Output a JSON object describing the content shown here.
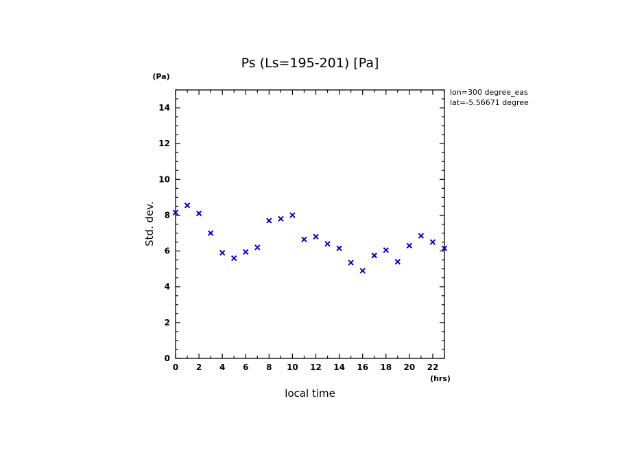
{
  "chart_data": {
    "type": "scatter",
    "title": "Ps (Ls=195-201) [Pa]",
    "xlabel": "local time",
    "ylabel": "Std. dev.",
    "x_unit": "(hrs)",
    "y_unit": "(Pa)",
    "xlim": [
      0,
      23
    ],
    "ylim": [
      0,
      15
    ],
    "x_ticks": [
      0,
      2,
      4,
      6,
      8,
      10,
      12,
      14,
      16,
      18,
      20,
      22
    ],
    "y_ticks": [
      0,
      2,
      4,
      6,
      8,
      10,
      12,
      14
    ],
    "annotations": [
      "lon=300 degree_eas",
      "lat=-5.56671 degree"
    ],
    "marker": "x",
    "color": "#0000dd",
    "x": [
      0,
      1,
      2,
      3,
      4,
      5,
      6,
      7,
      8,
      9,
      10,
      11,
      12,
      13,
      14,
      15,
      16,
      17,
      18,
      19,
      20,
      21,
      22,
      23
    ],
    "y": [
      8.15,
      8.55,
      8.1,
      7.0,
      5.9,
      5.6,
      5.95,
      6.2,
      7.7,
      7.8,
      8.0,
      6.65,
      6.8,
      6.4,
      6.15,
      5.35,
      4.9,
      5.75,
      6.05,
      5.4,
      6.3,
      6.85,
      6.5,
      6.15
    ]
  }
}
